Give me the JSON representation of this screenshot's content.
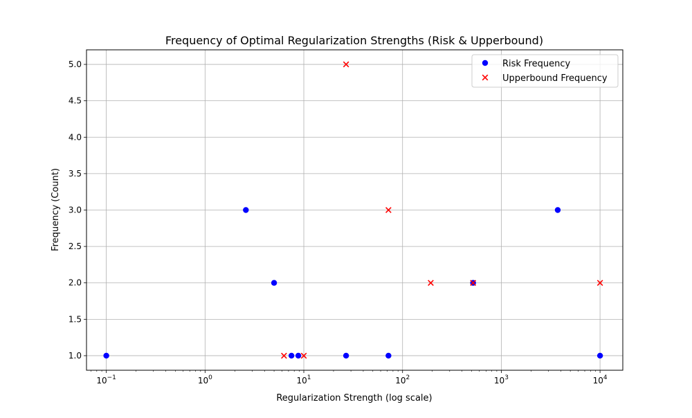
{
  "chart_data": {
    "type": "scatter",
    "title": "Frequency of Optimal Regularization Strengths (Risk & Upperbound)",
    "xlabel": "Regularization Strength (log scale)",
    "ylabel": "Frequency (Count)",
    "xscale": "log",
    "xlim": [
      0.063,
      17000
    ],
    "ylim": [
      0.8,
      5.2
    ],
    "grid": true,
    "legend_position": "top-right",
    "x_ticks": [
      {
        "value": 0.1,
        "base": "10",
        "exp": "−1"
      },
      {
        "value": 1,
        "base": "10",
        "exp": "0"
      },
      {
        "value": 10,
        "base": "10",
        "exp": "1"
      },
      {
        "value": 100,
        "base": "10",
        "exp": "2"
      },
      {
        "value": 1000,
        "base": "10",
        "exp": "3"
      },
      {
        "value": 10000,
        "base": "10",
        "exp": "4"
      }
    ],
    "y_ticks": [
      {
        "value": 1.0,
        "label": "1.0"
      },
      {
        "value": 1.5,
        "label": "1.5"
      },
      {
        "value": 2.0,
        "label": "2.0"
      },
      {
        "value": 2.5,
        "label": "2.5"
      },
      {
        "value": 3.0,
        "label": "3.0"
      },
      {
        "value": 3.5,
        "label": "3.5"
      },
      {
        "value": 4.0,
        "label": "4.0"
      },
      {
        "value": 4.5,
        "label": "4.5"
      },
      {
        "value": 5.0,
        "label": "5.0"
      }
    ],
    "series": [
      {
        "name": "Risk Frequency",
        "marker": "circle",
        "color": "#0000ff",
        "points": [
          {
            "x": 0.1,
            "y": 1
          },
          {
            "x": 2.59,
            "y": 3
          },
          {
            "x": 5.0,
            "y": 2
          },
          {
            "x": 7.5,
            "y": 1
          },
          {
            "x": 8.8,
            "y": 1
          },
          {
            "x": 26.8,
            "y": 1
          },
          {
            "x": 72.0,
            "y": 1
          },
          {
            "x": 518,
            "y": 2
          },
          {
            "x": 3728,
            "y": 3
          },
          {
            "x": 10000,
            "y": 1
          }
        ]
      },
      {
        "name": "Upperbound Frequency",
        "marker": "x",
        "color": "#ff0000",
        "points": [
          {
            "x": 6.3,
            "y": 1
          },
          {
            "x": 10.0,
            "y": 1
          },
          {
            "x": 26.8,
            "y": 5
          },
          {
            "x": 72.0,
            "y": 3
          },
          {
            "x": 193,
            "y": 2
          },
          {
            "x": 518,
            "y": 2
          },
          {
            "x": 10000,
            "y": 2
          }
        ]
      }
    ]
  }
}
